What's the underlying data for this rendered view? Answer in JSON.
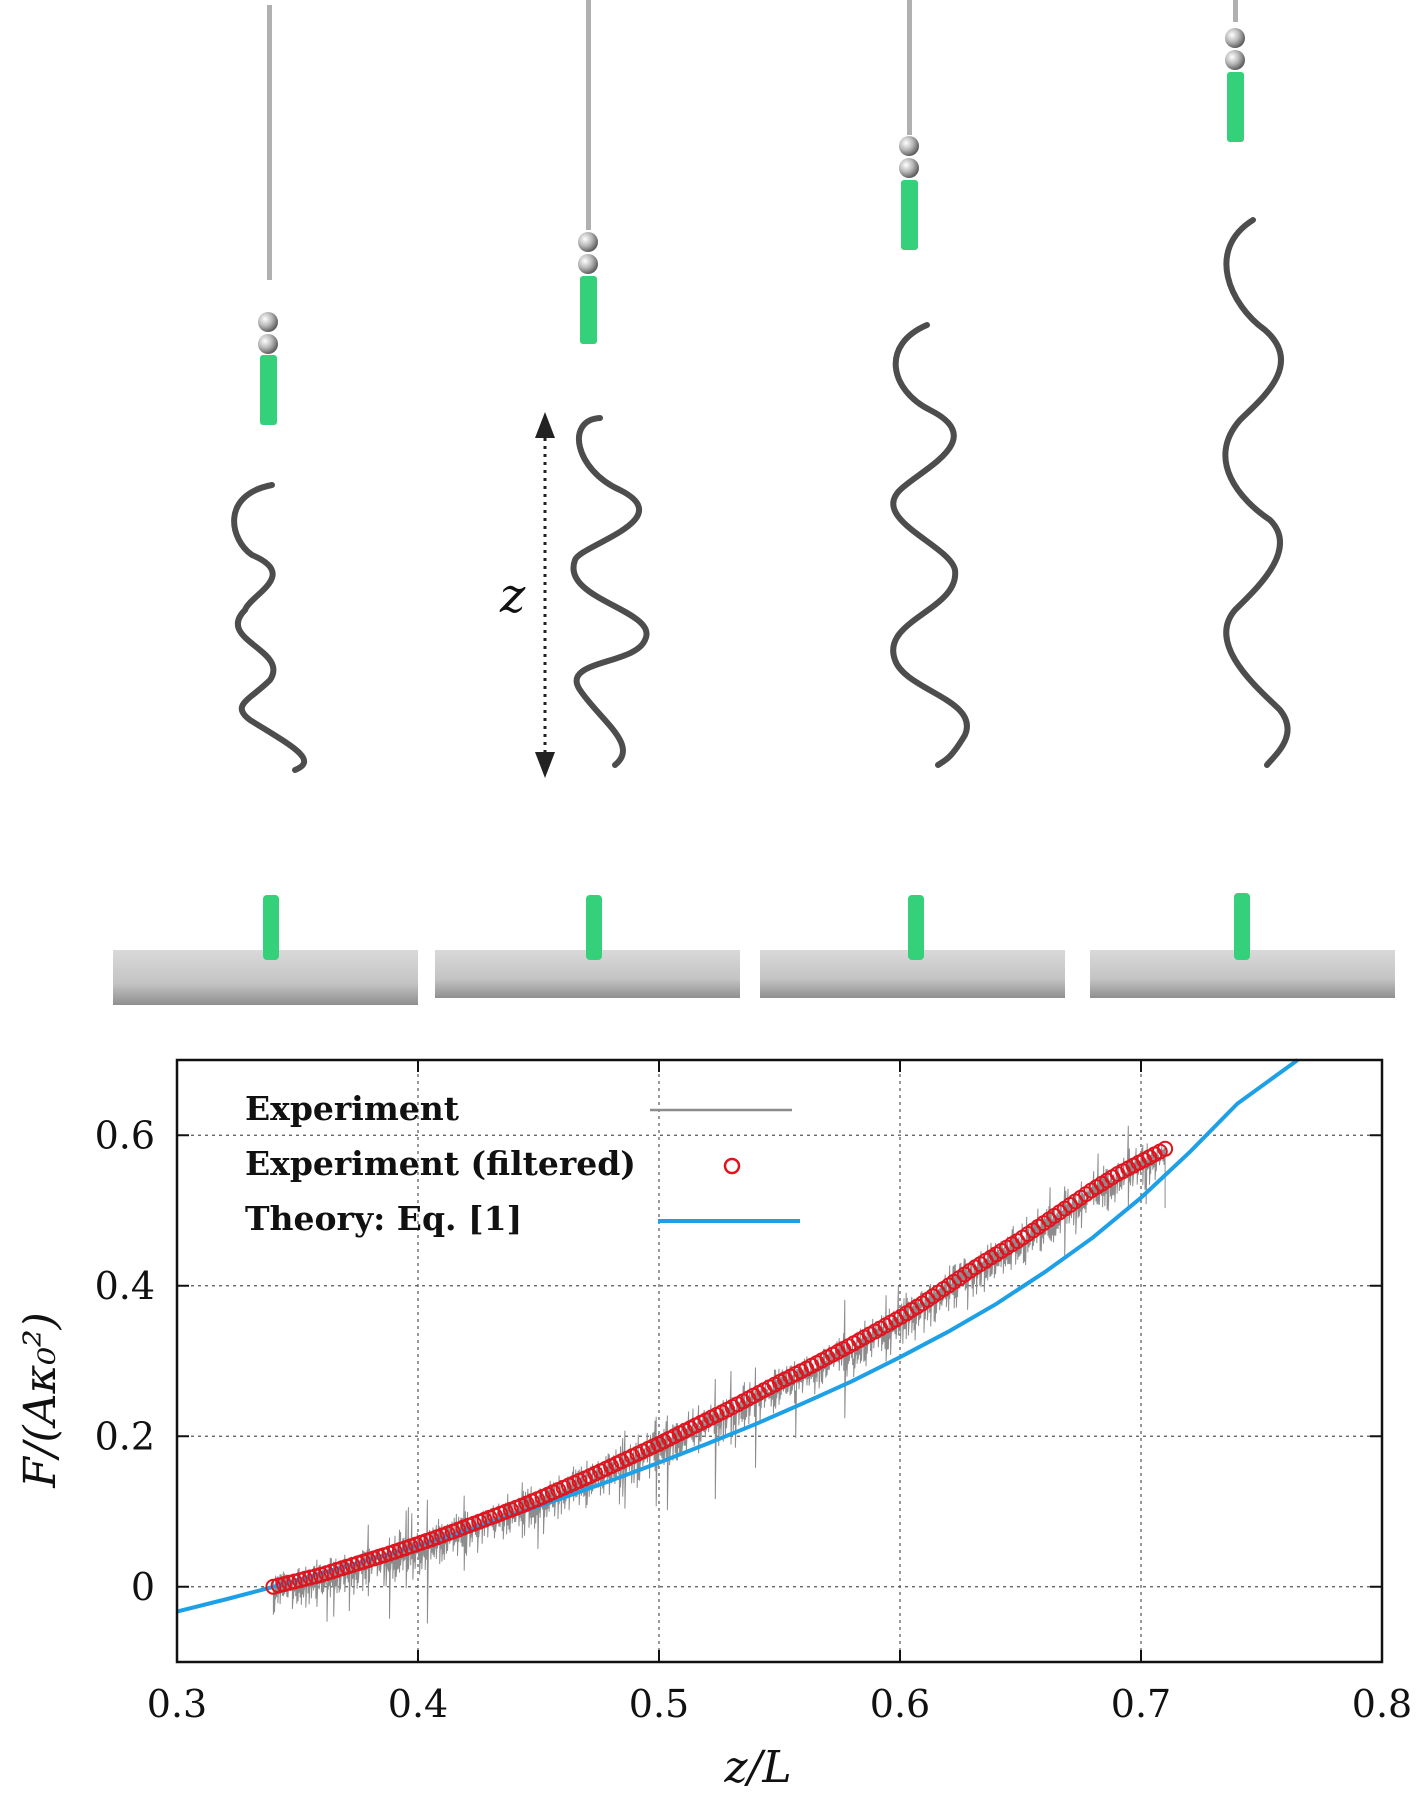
{
  "photo": {
    "arrow_label": "z",
    "frames": [
      {
        "frame": 1,
        "waves": 3
      },
      {
        "frame": 2,
        "waves": 3
      },
      {
        "frame": 3,
        "waves": 2.5
      },
      {
        "frame": 4,
        "waves": 2
      }
    ],
    "colors": {
      "filament": "#4d4d4d",
      "clamp": "#34d17a",
      "plate": "#c9c9c9",
      "wire": "#9a9a9a"
    }
  },
  "chart_data": {
    "type": "line",
    "xlabel": "z/L",
    "ylabel": "F/(Aκ₀²)",
    "xlim": [
      0.3,
      0.8
    ],
    "ylim": [
      -0.1,
      0.7
    ],
    "xticks": [
      "0.3",
      "0.4",
      "0.5",
      "0.6",
      "0.7",
      "0.8"
    ],
    "yticks": [
      "0",
      "0.2",
      "0.4",
      "0.6"
    ],
    "grid": true,
    "legend_position": "top-left",
    "series": [
      {
        "name": "Experiment",
        "style": "line",
        "color": "#8c8c8c",
        "x_range": [
          0.34,
          0.71
        ],
        "note_points": 800
      },
      {
        "name": "Experiment (filtered)",
        "style": "circles",
        "color": "#e0141e",
        "x": [
          0.34,
          0.35,
          0.36,
          0.37,
          0.38,
          0.39,
          0.4,
          0.41,
          0.42,
          0.43,
          0.44,
          0.45,
          0.46,
          0.47,
          0.48,
          0.49,
          0.5,
          0.51,
          0.52,
          0.53,
          0.54,
          0.55,
          0.56,
          0.57,
          0.58,
          0.59,
          0.6,
          0.61,
          0.62,
          0.63,
          0.64,
          0.65,
          0.66,
          0.67,
          0.68,
          0.69,
          0.7,
          0.71
        ],
        "y": [
          0.0,
          0.008,
          0.016,
          0.026,
          0.036,
          0.046,
          0.057,
          0.068,
          0.08,
          0.092,
          0.104,
          0.117,
          0.131,
          0.145,
          0.16,
          0.175,
          0.19,
          0.206,
          0.222,
          0.238,
          0.255,
          0.272,
          0.288,
          0.305,
          0.322,
          0.34,
          0.358,
          0.378,
          0.4,
          0.422,
          0.442,
          0.462,
          0.484,
          0.506,
          0.528,
          0.548,
          0.565,
          0.582
        ]
      },
      {
        "name": "Theory: Eq. [1]",
        "style": "line",
        "color": "#1ea0e6",
        "x": [
          0.3,
          0.32,
          0.34,
          0.36,
          0.38,
          0.4,
          0.42,
          0.44,
          0.46,
          0.48,
          0.5,
          0.52,
          0.54,
          0.56,
          0.58,
          0.6,
          0.62,
          0.64,
          0.66,
          0.68,
          0.7,
          0.72,
          0.74,
          0.765
        ],
        "y": [
          -0.033,
          -0.017,
          0.0,
          0.018,
          0.036,
          0.055,
          0.075,
          0.096,
          0.118,
          0.141,
          0.165,
          0.19,
          0.216,
          0.244,
          0.273,
          0.305,
          0.339,
          0.376,
          0.418,
          0.464,
          0.517,
          0.577,
          0.642,
          0.7
        ]
      }
    ]
  }
}
